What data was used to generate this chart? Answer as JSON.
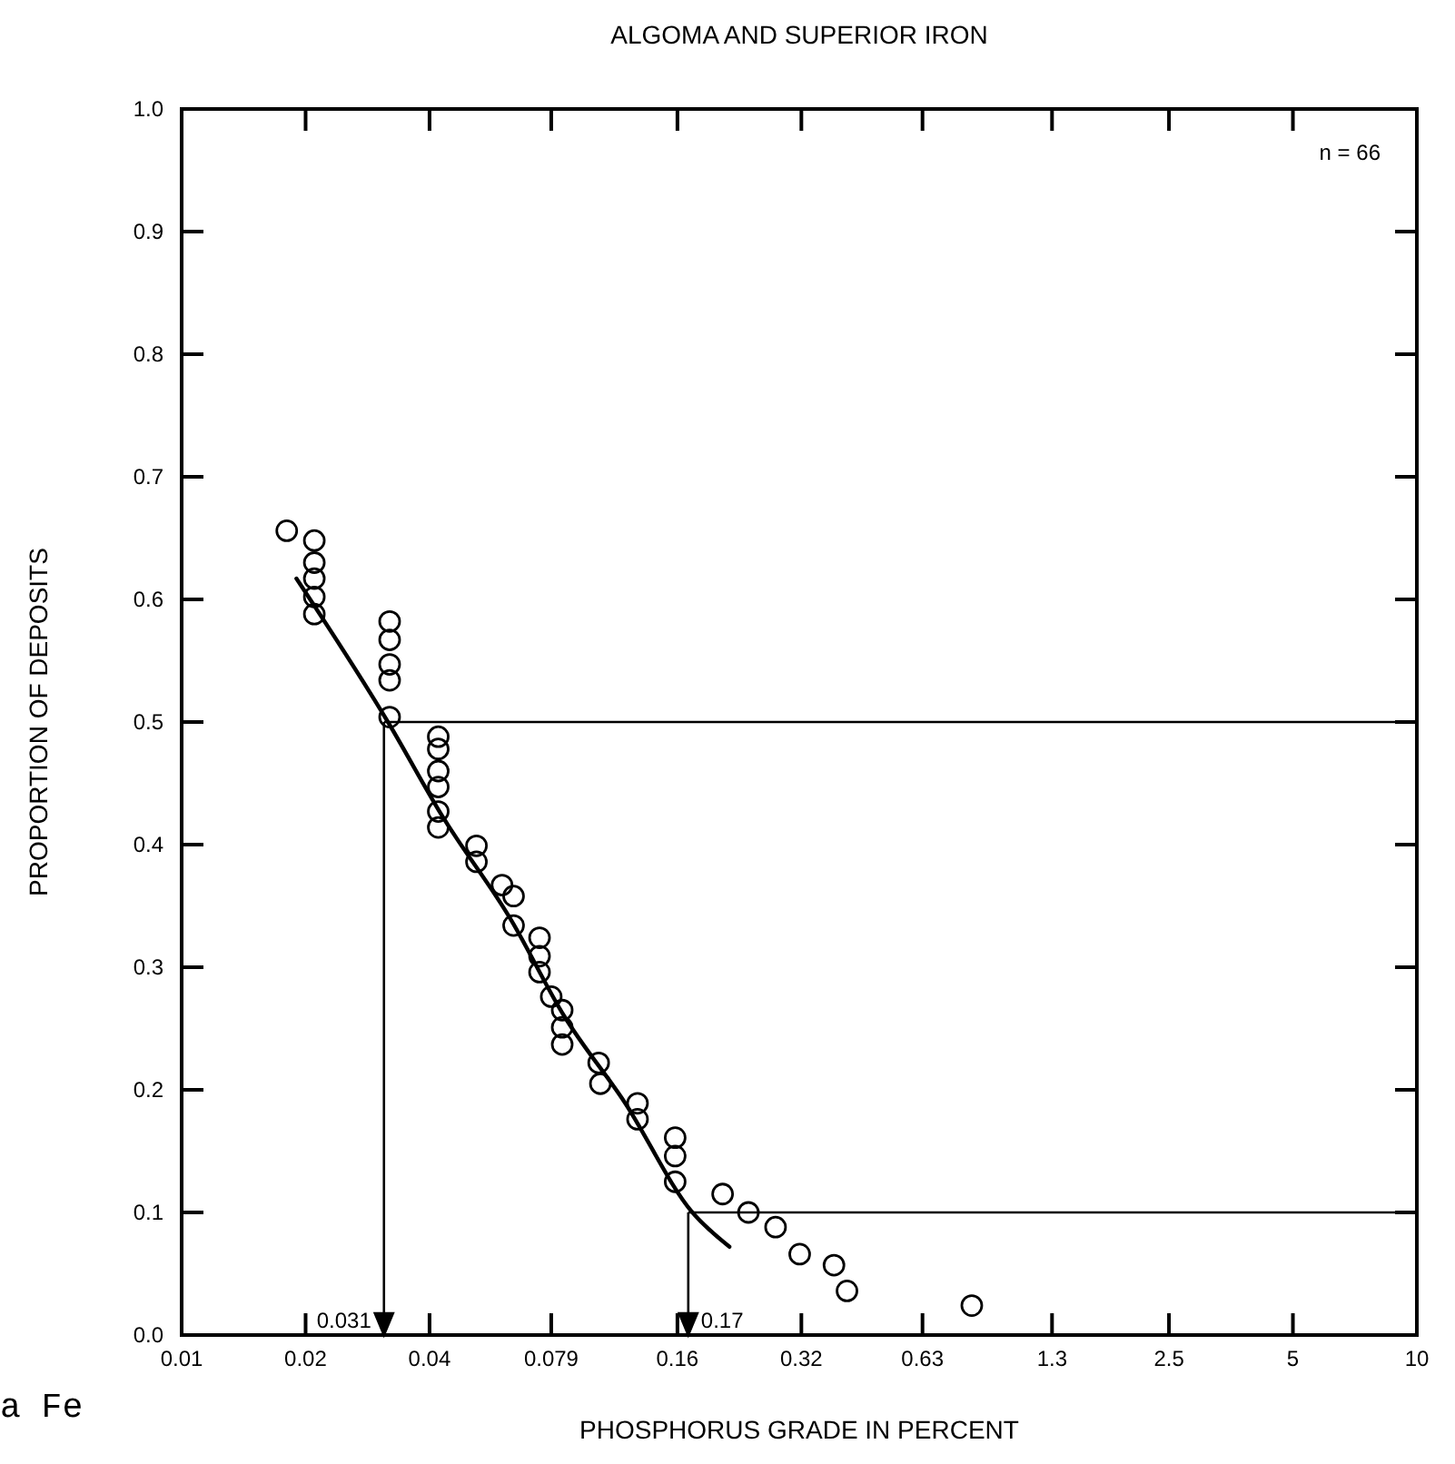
{
  "chart_data": {
    "type": "scatter",
    "title": "ALGOMA AND SUPERIOR IRON",
    "xlabel": "PHOSPHORUS  GRADE IN PERCENT",
    "ylabel": "PROPORTION OF DEPOSITS",
    "log": "x",
    "xlim": [
      0.01,
      10
    ],
    "ylim": [
      0,
      1
    ],
    "xticks": [
      0.01,
      0.02,
      0.04,
      0.079,
      0.16,
      0.32,
      0.63,
      1.3,
      2.5,
      5,
      10
    ],
    "yticks": [
      {
        "value": 0,
        "label": "0.0"
      },
      0.1,
      0.2,
      0.3,
      0.4,
      0.5,
      0.6,
      0.7,
      0.8,
      0.9,
      {
        "value": 1,
        "label": "1.0"
      }
    ],
    "grid": false,
    "series": [
      {
        "marker": "circle",
        "color": "#000000",
        "x": [
          0.018,
          0.021,
          0.021,
          0.021,
          0.021,
          0.021,
          0.032,
          0.032,
          0.032,
          0.032,
          0.032,
          0.042,
          0.042,
          0.042,
          0.042,
          0.042,
          0.042,
          0.052,
          0.052,
          0.06,
          0.064,
          0.064,
          0.074,
          0.074,
          0.074,
          0.079,
          0.084,
          0.084,
          0.084,
          0.103,
          0.104,
          0.128,
          0.128,
          0.158,
          0.158,
          0.158,
          0.206,
          0.238,
          0.277,
          0.317,
          0.384,
          0.413,
          0.83
        ],
        "values": [
          0.656,
          0.648,
          0.63,
          0.617,
          0.602,
          0.588,
          0.582,
          0.567,
          0.547,
          0.534,
          0.504,
          0.488,
          0.478,
          0.46,
          0.447,
          0.427,
          0.414,
          0.399,
          0.386,
          0.367,
          0.358,
          0.334,
          0.324,
          0.309,
          0.296,
          0.276,
          0.265,
          0.251,
          0.237,
          0.222,
          0.205,
          0.189,
          0.176,
          0.161,
          0.146,
          0.125,
          0.115,
          0.1,
          0.088,
          0.066,
          0.057,
          0.036,
          0.024
        ]
      },
      {
        "type": "line",
        "marker": "none",
        "line_style": "solid",
        "color": "#000000",
        "x": [
          0.019,
          0.0317,
          0.043,
          0.063,
          0.085,
          0.119,
          0.174,
          0.214
        ],
        "values": [
          0.617,
          0.5,
          0.423,
          0.339,
          0.26,
          0.19,
          0.1,
          0.072
        ]
      }
    ],
    "ref_lines": [
      {
        "axis": "x",
        "value": 0.031,
        "label": "0.031"
      },
      {
        "axis": "y",
        "value": 0.5
      },
      {
        "axis": "x",
        "value": 0.17,
        "label": "0.17"
      },
      {
        "axis": "y",
        "value": 0.1
      }
    ],
    "annotations": [
      "n = 66",
      "a Fe"
    ]
  }
}
